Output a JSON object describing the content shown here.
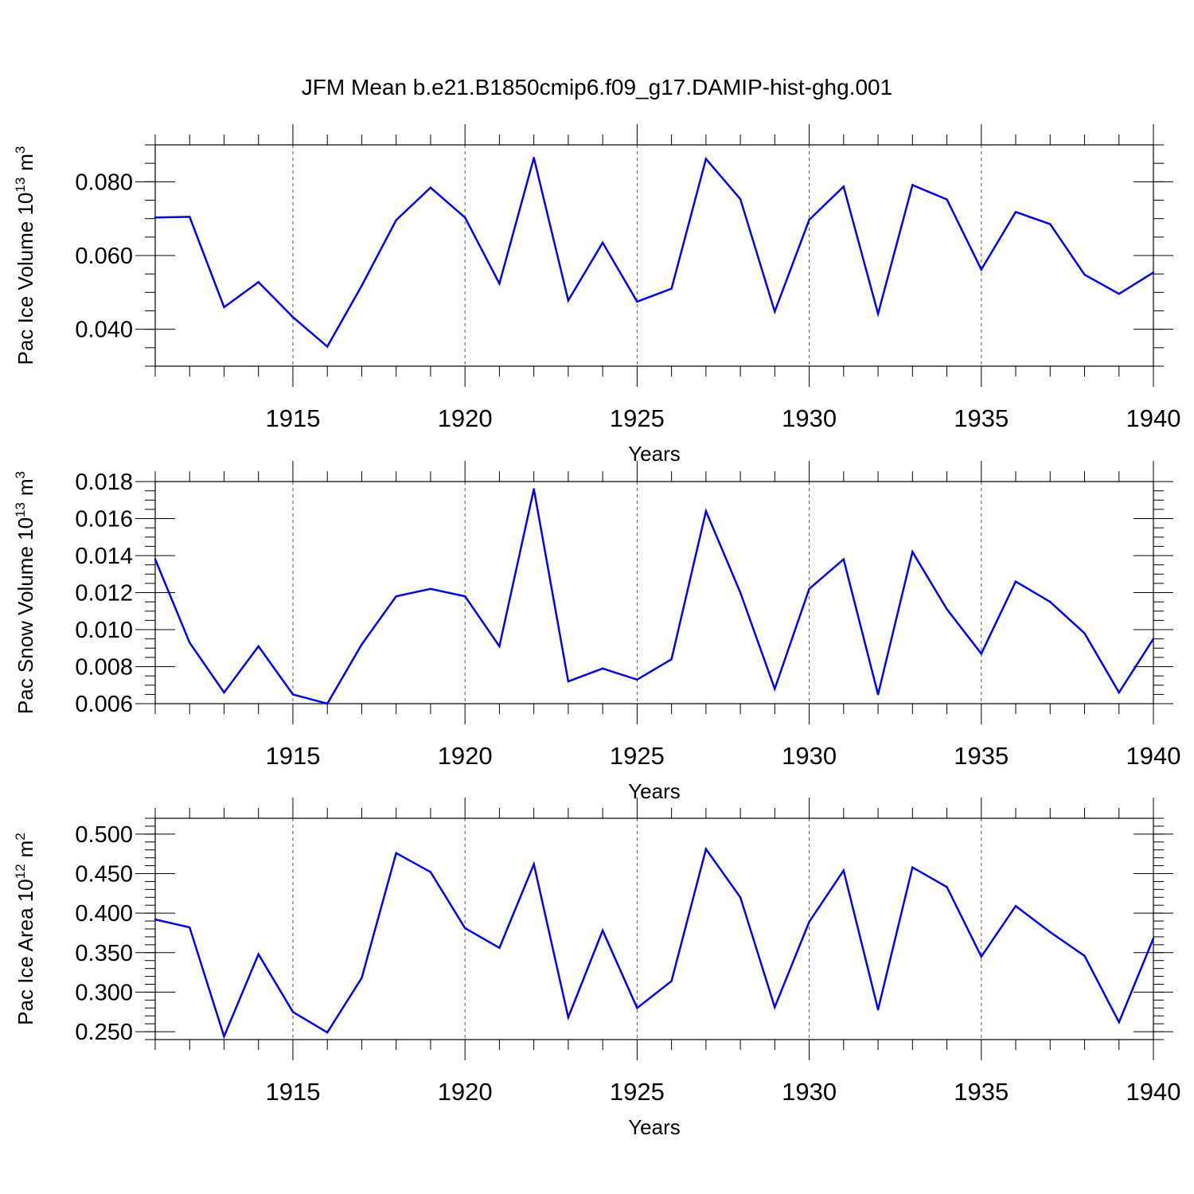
{
  "title": "JFM Mean b.e21.B1850cmip6.f09_g17.DAMIP-hist-ghg.001",
  "colors": {
    "line": "#0000ff",
    "axis": "#000000",
    "grid": "#555555"
  },
  "chart_data": [
    {
      "type": "line",
      "ylabel": {
        "text": "Pac Ice Volume 10",
        "exponent": "13",
        "unit": "m",
        "unit_exponent": "3"
      },
      "xlabel": "Years",
      "xlim": [
        1911,
        1940
      ],
      "ylim": [
        0.03,
        0.09
      ],
      "yticks": [
        0.04,
        0.06,
        0.08
      ],
      "ytick_labels": [
        "0.040",
        "0.060",
        "0.080"
      ],
      "yminor_step": 0.005,
      "xticks": [
        1915,
        1920,
        1925,
        1930,
        1935,
        1940
      ],
      "xtick_labels": [
        "1915",
        "1920",
        "1925",
        "1930",
        "1935",
        "1940"
      ],
      "x": [
        1911,
        1912,
        1913,
        1914,
        1915,
        1916,
        1917,
        1918,
        1919,
        1920,
        1921,
        1922,
        1923,
        1924,
        1925,
        1926,
        1927,
        1928,
        1929,
        1930,
        1931,
        1932,
        1933,
        1934,
        1935,
        1936,
        1937,
        1938,
        1939,
        1940
      ],
      "y": [
        0.0703,
        0.0705,
        0.046,
        0.0528,
        0.0433,
        0.0353,
        0.0518,
        0.0696,
        0.0784,
        0.0703,
        0.0524,
        0.0865,
        0.0478,
        0.0635,
        0.0475,
        0.051,
        0.0862,
        0.0753,
        0.0448,
        0.0697,
        0.0787,
        0.0442,
        0.0791,
        0.0752,
        0.0562,
        0.0718,
        0.0685,
        0.0548,
        0.0496,
        0.0554
      ],
      "grid": "vertical dashed at major x ticks"
    },
    {
      "type": "line",
      "ylabel": {
        "text": "Pac Snow Volume 10",
        "exponent": "13",
        "unit": "m",
        "unit_exponent": "3"
      },
      "xlabel": "Years",
      "xlim": [
        1911,
        1940
      ],
      "ylim": [
        0.006,
        0.018
      ],
      "yticks": [
        0.006,
        0.008,
        0.01,
        0.012,
        0.014,
        0.016,
        0.018
      ],
      "ytick_labels": [
        "0.006",
        "0.008",
        "0.010",
        "0.012",
        "0.014",
        "0.016",
        "0.018"
      ],
      "yminor_step": 0.0005,
      "xticks": [
        1915,
        1920,
        1925,
        1930,
        1935,
        1940
      ],
      "xtick_labels": [
        "1915",
        "1920",
        "1925",
        "1930",
        "1935",
        "1940"
      ],
      "x": [
        1911,
        1912,
        1913,
        1914,
        1915,
        1916,
        1917,
        1918,
        1919,
        1920,
        1921,
        1922,
        1923,
        1924,
        1925,
        1926,
        1927,
        1928,
        1929,
        1930,
        1931,
        1932,
        1933,
        1934,
        1935,
        1936,
        1937,
        1938,
        1939,
        1940
      ],
      "y": [
        0.0138,
        0.0093,
        0.0066,
        0.0091,
        0.0065,
        0.006,
        0.0092,
        0.0118,
        0.0122,
        0.0118,
        0.0091,
        0.0176,
        0.0072,
        0.0079,
        0.0073,
        0.0084,
        0.0164,
        0.012,
        0.0068,
        0.0122,
        0.0138,
        0.0065,
        0.0142,
        0.0111,
        0.0087,
        0.0126,
        0.0115,
        0.0098,
        0.0066,
        0.0095
      ],
      "grid": "vertical dashed at major x ticks"
    },
    {
      "type": "line",
      "ylabel": {
        "text": "Pac Ice Area 10",
        "exponent": "12",
        "unit": "m",
        "unit_exponent": "2"
      },
      "xlabel": "Years",
      "xlim": [
        1911,
        1940
      ],
      "ylim": [
        0.24,
        0.52
      ],
      "yticks": [
        0.25,
        0.3,
        0.35,
        0.4,
        0.45,
        0.5
      ],
      "ytick_labels": [
        "0.250",
        "0.300",
        "0.350",
        "0.400",
        "0.450",
        "0.500"
      ],
      "yminor_step": 0.01,
      "xticks": [
        1915,
        1920,
        1925,
        1930,
        1935,
        1940
      ],
      "xtick_labels": [
        "1915",
        "1920",
        "1925",
        "1930",
        "1935",
        "1940"
      ],
      "x": [
        1911,
        1912,
        1913,
        1914,
        1915,
        1916,
        1917,
        1918,
        1919,
        1920,
        1921,
        1922,
        1923,
        1924,
        1925,
        1926,
        1927,
        1928,
        1929,
        1930,
        1931,
        1932,
        1933,
        1934,
        1935,
        1936,
        1937,
        1938,
        1939,
        1940
      ],
      "y": [
        0.392,
        0.382,
        0.244,
        0.348,
        0.275,
        0.249,
        0.318,
        0.476,
        0.452,
        0.381,
        0.356,
        0.462,
        0.268,
        0.378,
        0.28,
        0.314,
        0.481,
        0.42,
        0.281,
        0.389,
        0.454,
        0.278,
        0.458,
        0.433,
        0.345,
        0.409,
        0.376,
        0.346,
        0.262,
        0.368
      ],
      "grid": "vertical dashed at major x ticks"
    }
  ]
}
